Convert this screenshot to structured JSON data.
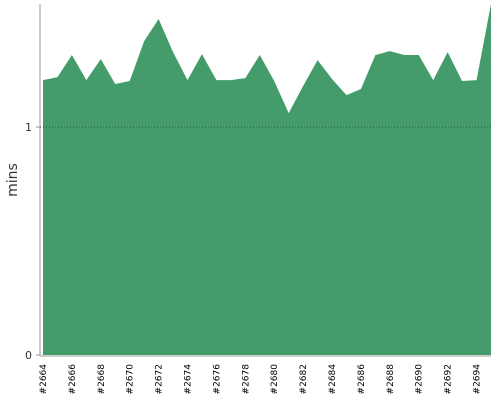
{
  "chart_data": {
    "type": "area",
    "y_label": "mins",
    "color": "#459c6b",
    "categories": [
      "#2664",
      null,
      "#2666",
      null,
      "#2668",
      null,
      "#2670",
      null,
      "#2672",
      null,
      "#2674",
      null,
      "#2676",
      null,
      "#2678",
      null,
      "#2680",
      null,
      "#2682",
      null,
      "#2684",
      null,
      "#2686",
      null,
      "#2688",
      null,
      "#2690",
      null,
      "#2692",
      null,
      "#2694",
      null
    ],
    "values": [
      1.206,
      1.219,
      1.316,
      1.206,
      1.298,
      1.189,
      1.202,
      1.377,
      1.474,
      1.329,
      1.206,
      1.32,
      1.206,
      1.206,
      1.215,
      1.316,
      1.202,
      1.061,
      1.18,
      1.294,
      1.211,
      1.14,
      1.167,
      1.316,
      1.333,
      1.316,
      1.316,
      1.206,
      1.329,
      1.202,
      1.206,
      1.54
    ],
    "ylim": [
      0,
      1.54
    ],
    "yticks": [
      0,
      1
    ],
    "grid": true
  }
}
